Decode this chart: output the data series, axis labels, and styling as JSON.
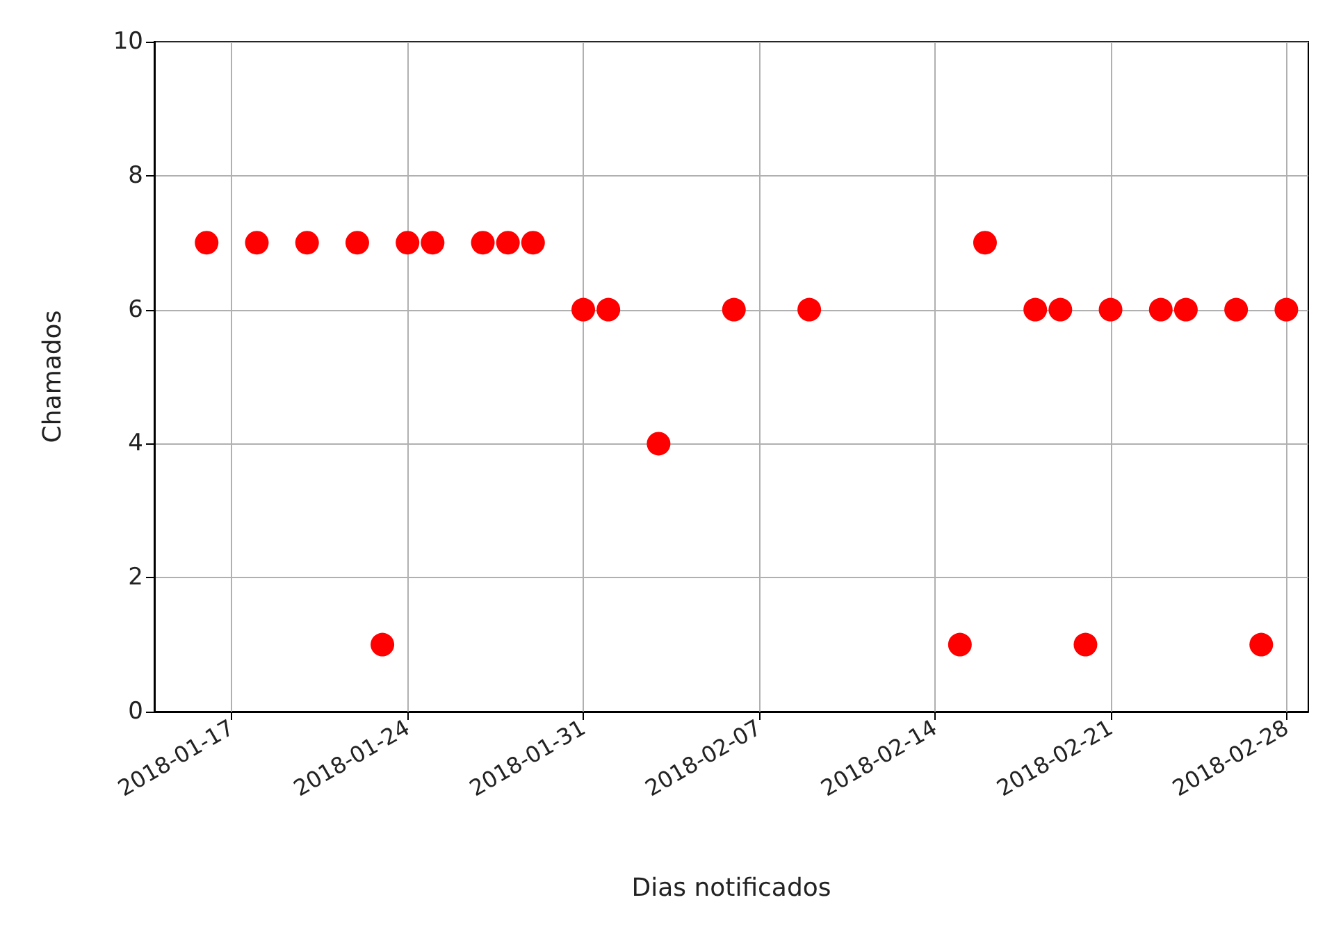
{
  "chart_data": {
    "type": "scatter",
    "xlabel": "Dias notificados",
    "ylabel": "Chamados",
    "x": [
      "2018-01-16",
      "2018-01-18",
      "2018-01-20",
      "2018-01-22",
      "2018-01-23",
      "2018-01-24",
      "2018-01-25",
      "2018-01-27",
      "2018-01-28",
      "2018-01-29",
      "2018-01-31",
      "2018-02-01",
      "2018-02-03",
      "2018-02-06",
      "2018-02-09",
      "2018-02-15",
      "2018-02-16",
      "2018-02-18",
      "2018-02-19",
      "2018-02-20",
      "2018-02-21",
      "2018-02-23",
      "2018-02-24",
      "2018-02-26",
      "2018-02-27",
      "2018-02-28"
    ],
    "values": [
      7,
      7,
      7,
      7,
      1,
      7,
      7,
      7,
      7,
      7,
      6,
      6,
      4,
      6,
      6,
      1,
      7,
      6,
      6,
      1,
      6,
      6,
      6,
      6,
      1,
      6
    ],
    "color": "#ff0000",
    "marker": "circle",
    "xlim": [
      "2018-01-13T22:00",
      "2018-02-28T21:00"
    ],
    "xticks": [
      "2018-01-17",
      "2018-01-24",
      "2018-01-31",
      "2018-02-07",
      "2018-02-14",
      "2018-02-21",
      "2018-02-28"
    ],
    "ylim": [
      0,
      10
    ],
    "yticks": [
      0,
      2,
      4,
      6,
      8,
      10
    ],
    "grid": true
  }
}
